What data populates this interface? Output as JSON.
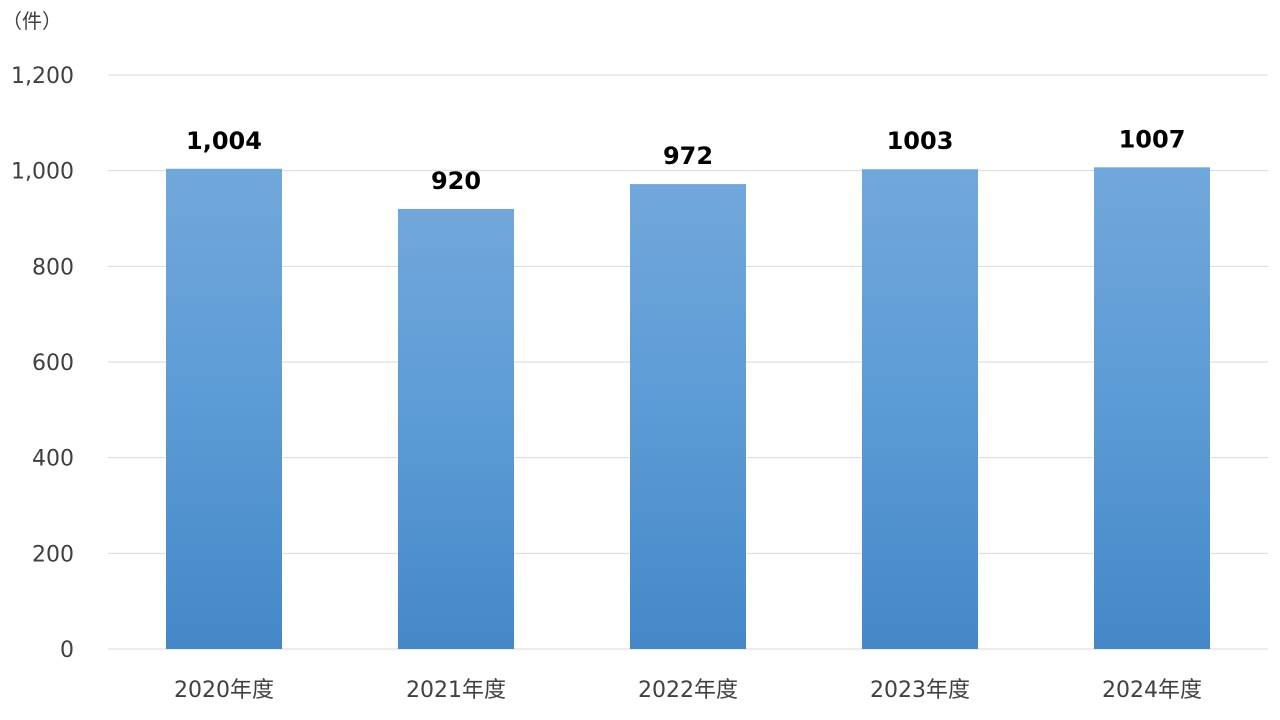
{
  "chart_data": {
    "type": "bar",
    "unit_label": "（件）",
    "categories": [
      "2020年度",
      "2021年度",
      "2022年度",
      "2023年度",
      "2024年度"
    ],
    "values": [
      1004,
      920,
      972,
      1003,
      1007
    ],
    "data_labels": [
      "1,004",
      "920",
      "972",
      "1003",
      "1007"
    ],
    "y_ticks": [
      "0",
      "200",
      "400",
      "600",
      "800",
      "1,000",
      "1,200"
    ],
    "ylim": [
      0,
      1200
    ],
    "grid": true,
    "legend": "none",
    "colors": {
      "bar_top": "#72a7dc",
      "bar_mid": "#5b9bd5",
      "bar_bottom": "#4488c8",
      "grid": "#d9d9d9"
    }
  }
}
